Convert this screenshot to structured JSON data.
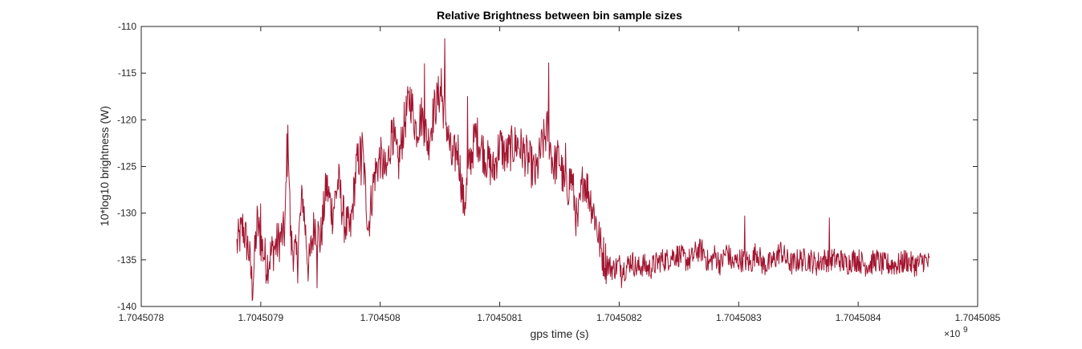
{
  "chart_data": {
    "type": "line",
    "title": "Relative Brightness between bin sample sizes",
    "xlabel": "gps time (s)",
    "ylabel": "10*log10 brightness (W)",
    "x_exponent_label": "×10",
    "x_exponent_power": "9",
    "x_scale_factor": 1000000000,
    "xlim": [
      1.7045078,
      1.7045085
    ],
    "ylim": [
      -140,
      -110
    ],
    "xticks": [
      1.7045078,
      1.7045079,
      1.704508,
      1.7045081,
      1.7045082,
      1.7045083,
      1.7045084,
      1.7045085
    ],
    "xtick_labels": [
      "1.7045078",
      "1.7045079",
      "1.704508",
      "1.7045081",
      "1.7045082",
      "1.7045083",
      "1.7045084",
      "1.7045085"
    ],
    "yticks": [
      -140,
      -135,
      -130,
      -125,
      -120,
      -115,
      -110
    ],
    "ytick_labels": [
      "-140",
      "-135",
      "-130",
      "-125",
      "-120",
      "-115",
      "-110"
    ],
    "grid": false,
    "series_color": "#A2142F",
    "x_start": 1.70450788,
    "x_end": 1.70450846,
    "key_points": [
      [
        1.70450788,
        -133.5
      ],
      [
        1.704507885,
        -131.5
      ],
      [
        1.70450789,
        -134.0
      ],
      [
        1.704507893,
        -138.0
      ],
      [
        1.704507897,
        -131.0
      ],
      [
        1.7045079,
        -133.0
      ],
      [
        1.704507905,
        -135.5
      ],
      [
        1.70450791,
        -134.0
      ],
      [
        1.704507915,
        -133.0
      ],
      [
        1.70450792,
        -132.0
      ],
      [
        1.704507923,
        -121.5
      ],
      [
        1.704507925,
        -133.0
      ],
      [
        1.70450793,
        -135.0
      ],
      [
        1.704507935,
        -128.0
      ],
      [
        1.70450794,
        -136.0
      ],
      [
        1.704507945,
        -131.0
      ],
      [
        1.70450795,
        -133.0
      ],
      [
        1.704507955,
        -127.0
      ],
      [
        1.70450796,
        -130.0
      ],
      [
        1.704507965,
        -126.5
      ],
      [
        1.70450797,
        -131.0
      ],
      [
        1.704507975,
        -132.0
      ],
      [
        1.70450798,
        -125.0
      ],
      [
        1.704507985,
        -123.0
      ],
      [
        1.70450799,
        -131.5
      ],
      [
        1.704507995,
        -126.0
      ],
      [
        1.704508,
        -124.0
      ],
      [
        1.704508005,
        -126.0
      ],
      [
        1.70450801,
        -121.0
      ],
      [
        1.704508015,
        -125.0
      ],
      [
        1.70450802,
        -120.5
      ],
      [
        1.704508025,
        -117.5
      ],
      [
        1.70450803,
        -121.0
      ],
      [
        1.704508035,
        -119.5
      ],
      [
        1.70450804,
        -122.5
      ],
      [
        1.704508045,
        -119.0
      ],
      [
        1.70450805,
        -117.0
      ],
      [
        1.704508055,
        -120.0
      ],
      [
        1.70450806,
        -124.5
      ],
      [
        1.704508065,
        -123.0
      ],
      [
        1.70450807,
        -129.5
      ],
      [
        1.704508075,
        -124.5
      ],
      [
        1.70450808,
        -121.5
      ],
      [
        1.704508085,
        -123.0
      ],
      [
        1.70450809,
        -124.5
      ],
      [
        1.704508095,
        -125.5
      ],
      [
        1.7045081,
        -122.5
      ],
      [
        1.704508105,
        -124.0
      ],
      [
        1.70450811,
        -123.0
      ],
      [
        1.704508115,
        -122.5
      ],
      [
        1.70450812,
        -123.5
      ],
      [
        1.704508125,
        -124.5
      ],
      [
        1.70450813,
        -126.0
      ],
      [
        1.704508135,
        -123.0
      ],
      [
        1.70450814,
        -121.0
      ],
      [
        1.704508145,
        -125.0
      ],
      [
        1.70450815,
        -124.0
      ],
      [
        1.704508155,
        -128.0
      ],
      [
        1.70450816,
        -126.0
      ],
      [
        1.704508165,
        -131.5
      ],
      [
        1.70450817,
        -126.0
      ],
      [
        1.704508175,
        -128.0
      ],
      [
        1.70450818,
        -130.5
      ],
      [
        1.704508185,
        -134.0
      ],
      [
        1.70450819,
        -135.5
      ],
      [
        1.704508195,
        -136.0
      ],
      [
        1.7045082,
        -135.5
      ],
      [
        1.704508205,
        -136.0
      ],
      [
        1.70450821,
        -135.0
      ],
      [
        1.704508215,
        -136.0
      ],
      [
        1.70450822,
        -135.5
      ],
      [
        1.704508225,
        -136.0
      ],
      [
        1.70450823,
        -135.5
      ],
      [
        1.704508235,
        -135.0
      ],
      [
        1.70450824,
        -135.0
      ],
      [
        1.704508245,
        -134.5
      ],
      [
        1.70450825,
        -134.5
      ],
      [
        1.704508255,
        -135.0
      ],
      [
        1.70450826,
        -135.0
      ],
      [
        1.704508265,
        -134.0
      ],
      [
        1.70450827,
        -134.0
      ],
      [
        1.704508275,
        -135.5
      ],
      [
        1.70450828,
        -134.5
      ],
      [
        1.704508285,
        -135.5
      ],
      [
        1.70450829,
        -134.0
      ],
      [
        1.704508295,
        -135.5
      ],
      [
        1.7045083,
        -135.0
      ],
      [
        1.704508305,
        -135.0
      ],
      [
        1.70450831,
        -135.5
      ],
      [
        1.704508315,
        -134.0
      ],
      [
        1.70450832,
        -135.5
      ],
      [
        1.704508325,
        -135.5
      ],
      [
        1.70450833,
        -135.0
      ],
      [
        1.704508335,
        -134.0
      ],
      [
        1.70450834,
        -135.0
      ],
      [
        1.704508345,
        -135.5
      ],
      [
        1.70450835,
        -135.0
      ],
      [
        1.704508355,
        -135.0
      ],
      [
        1.70450836,
        -135.0
      ],
      [
        1.704508365,
        -135.5
      ],
      [
        1.70450837,
        -135.0
      ],
      [
        1.704508375,
        -135.0
      ],
      [
        1.70450838,
        -135.0
      ],
      [
        1.704508385,
        -135.0
      ],
      [
        1.70450839,
        -135.5
      ],
      [
        1.704508395,
        -135.0
      ],
      [
        1.7045084,
        -135.0
      ],
      [
        1.704508405,
        -135.5
      ],
      [
        1.70450841,
        -135.5
      ],
      [
        1.704508415,
        -135.0
      ],
      [
        1.70450842,
        -135.5
      ],
      [
        1.704508425,
        -135.5
      ],
      [
        1.70450843,
        -135.5
      ],
      [
        1.704508435,
        -135.5
      ],
      [
        1.70450844,
        -135.0
      ],
      [
        1.704508445,
        -135.5
      ],
      [
        1.70450845,
        -135.5
      ],
      [
        1.704508455,
        -135.0
      ],
      [
        1.70450846,
        -135.5
      ]
    ],
    "spikes": [
      [
        1.704507922,
        -121.5
      ],
      [
        1.7045079,
        -129.0
      ],
      [
        1.704507984,
        -127.0
      ],
      [
        1.70450801,
        -120.0
      ],
      [
        1.704508025,
        -116.5
      ],
      [
        1.704508037,
        -114.0
      ],
      [
        1.704508051,
        -114.5
      ],
      [
        1.704508054,
        -111.3
      ],
      [
        1.704508073,
        -117.5
      ],
      [
        1.704508141,
        -113.9
      ],
      [
        1.704508155,
        -122.5
      ],
      [
        1.704508305,
        -130.3
      ],
      [
        1.704508376,
        -130.5
      ],
      [
        1.704508202,
        -138.0
      ],
      [
        1.704507947,
        -138.0
      ],
      [
        1.704507931,
        -137.5
      ]
    ],
    "noise_seed": 12345
  }
}
